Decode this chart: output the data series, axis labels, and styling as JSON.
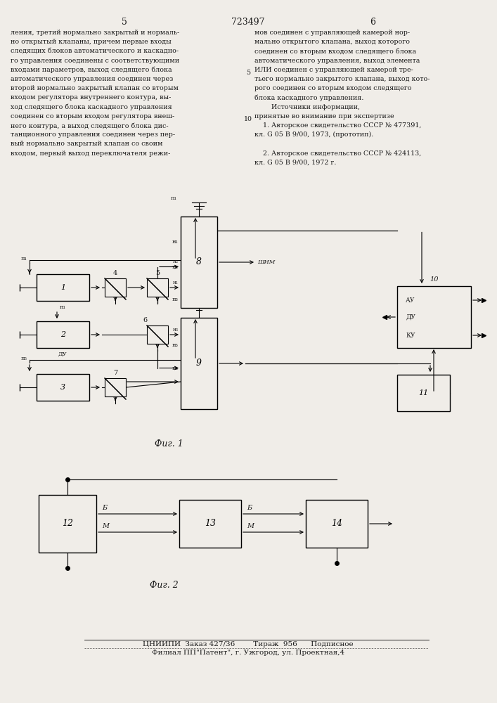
{
  "page_number_left": "5",
  "page_number_center": "723497",
  "page_number_right": "6",
  "text_left": [
    "ления, третий нормально закрытый и нормаль-",
    "но открытый клапаны, причем первые входы",
    "следящих блоков автоматического и каскадно-",
    "го управления соединены с соответствующими",
    "входами параметров, выход следящего блока",
    "автоматического управления соединен через",
    "второй нормально закрытый клапан со вторым",
    "входом регулятора внутреннего контура, вы-",
    "ход следящего блока каскадного управления",
    "соединен со вторым входом регулятора внеш-",
    "него контура, а выход следящего блока дис-",
    "танционного управления соединен через пер-",
    "вый нормально закрытый клапан со своим",
    "входом, первый выход переключателя режи-"
  ],
  "text_right": [
    "мов соединен с управляющей камерой нор-",
    "мально открытого клапана, выход которого",
    "соединен со вторым входом следящего блока",
    "автоматического управления, выход элемента",
    "ИЛИ соединен с управляющей камерой тре-",
    "тьего нормально закрытого клапана, выход кото-",
    "рого соединен со вторым входом следящего",
    "блока каскадного управления.",
    "        Источники информации,",
    "принятые во внимание при экспертизе",
    "    1. Авторское свидетельство СССР № 477391,",
    "кл. G 05 В 9/00, 1973, (прототип).",
    "",
    "    2. Авторское свидетельство СССР № 424113,",
    "кл. G 05 В 9/00, 1972 г."
  ],
  "line_num_5_row": 4,
  "line_num_10_row": 9,
  "fig1_caption": "Фиг. 1",
  "fig2_caption": "Фиг. 2",
  "footer_line1": "ЦНИИПИ  Заказ 427/36        Тираж  956      Подписное",
  "footer_line2": "Филиал ПП\"Патент\", г. Ужгород, ул. Проектная,4",
  "bg_color": "#f0ede8",
  "text_color": "#1a1a1a"
}
